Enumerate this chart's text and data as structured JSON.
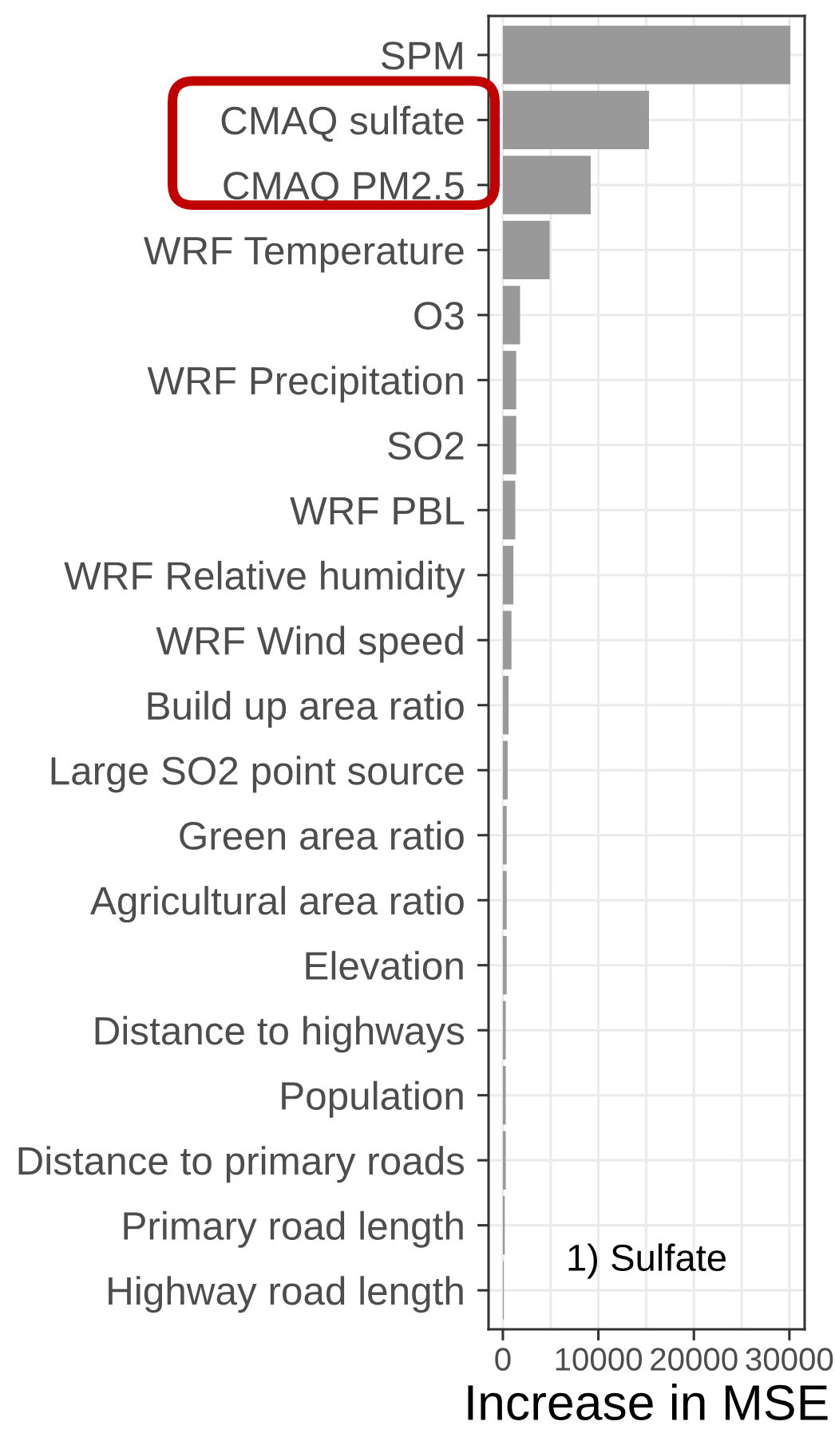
{
  "chart_data": {
    "type": "bar",
    "orientation": "horizontal",
    "xlabel": "Increase in MSE",
    "categories": [
      "SPM",
      "CMAQ sulfate",
      "CMAQ PM2.5",
      "WRF Temperature",
      "O3",
      "WRF Precipitation",
      "SO2",
      "WRF PBL",
      "WRF Relative humidity",
      "WRF Wind speed",
      "Build up area ratio",
      "Large SO2 point source",
      "Green area ratio",
      "Agricultural area ratio",
      "Elevation",
      "Distance to highways",
      "Population",
      "Distance to primary roads",
      "Primary road length",
      "Highway road length"
    ],
    "values": [
      30100,
      15300,
      9200,
      4900,
      1800,
      1400,
      1400,
      1300,
      1100,
      900,
      600,
      500,
      400,
      400,
      400,
      300,
      300,
      300,
      200,
      100
    ],
    "color": "#999999",
    "xlim": [
      -1500,
      31600
    ],
    "xticks": [
      0,
      {
        "value": 5000,
        "label": null
      },
      10000,
      {
        "value": 15000,
        "label": null
      },
      20000,
      {
        "value": 25000,
        "label": null
      },
      30000
    ],
    "grid": true,
    "annotations": [
      "1) Sulfate"
    ]
  }
}
